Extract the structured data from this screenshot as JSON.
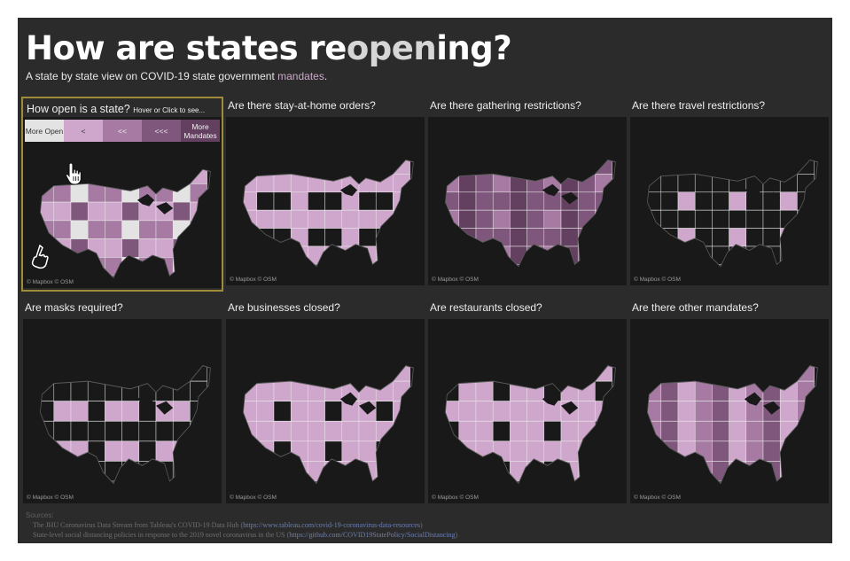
{
  "title": {
    "before": "How are states re",
    "highlight": "open",
    "after": "ing?"
  },
  "subtitle": {
    "before": "A state by state view on COVID-19 state government ",
    "highlight": "mandates",
    "after": "."
  },
  "legend_panel": {
    "title": "How open is a state?",
    "hint": "Hover or Click to see...",
    "legend": [
      "More Open",
      "<",
      "<<",
      "<<<",
      "More Mandates"
    ]
  },
  "panels": [
    {
      "title": "Are there stay-at-home orders?"
    },
    {
      "title": "Are there gathering restrictions?"
    },
    {
      "title": "Are there travel restrictions?"
    },
    {
      "title": "Are masks required?"
    },
    {
      "title": "Are businesses closed?"
    },
    {
      "title": "Are restaurants closed?"
    },
    {
      "title": "Are there other mandates?"
    }
  ],
  "attribution": "© Mapbox  © OSM",
  "sources": {
    "label": "Sources:",
    "line1_text": "The JHU Coronavirus Data Stream from Tableau's COVID-19 Data Hub (",
    "line1_link": "https://www.tableau.com/covid-19-coronavirus-data-resources",
    "line1_close": ")",
    "line2_text": "State-level social distancing policies in response to the 2019 novel coronavirus in the US (",
    "line2_link": "https://github.com/COVID19StatePolicy/SocialDistancing",
    "line2_close": ")"
  },
  "colors": {
    "background": "#2b2b2b",
    "map_background": "#191919",
    "highlight_border": "#a08c38",
    "scale": [
      "#e3e3e3",
      "#cfa7cd",
      "#a67aa3",
      "#7f567c",
      "#633f60"
    ]
  },
  "icons": [
    "pointer-hand-icon",
    "pointing-finger-icon"
  ]
}
